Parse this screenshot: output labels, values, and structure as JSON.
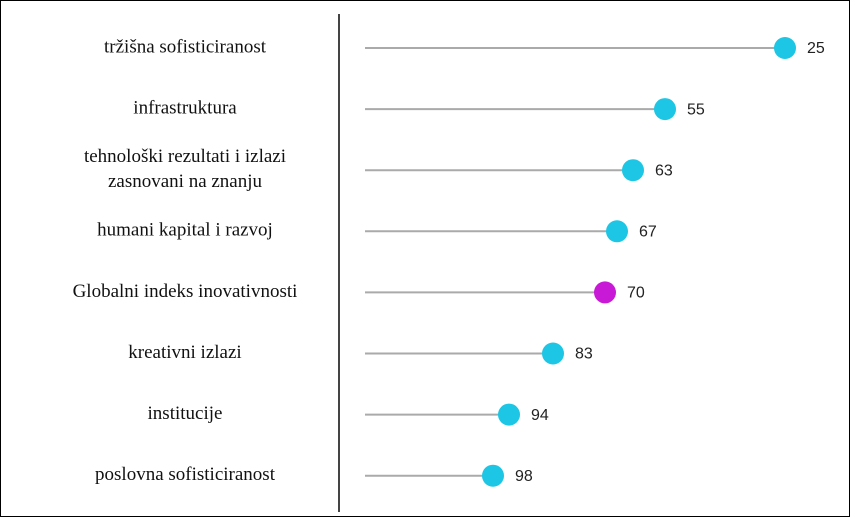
{
  "chart_data": {
    "type": "lollipop",
    "categories": [
      "tržišna sofisticiranost",
      "infrastruktura",
      [
        "tehnološki rezultati i izlazi",
        "zasnovani na znanju"
      ],
      "humani kapital i razvoj",
      "Globalni indeks inovativnosti",
      "kreativni izlazi",
      "institucije",
      "poslovna sofisticiranost"
    ],
    "values": [
      25,
      55,
      63,
      67,
      70,
      83,
      94,
      98
    ],
    "colors": [
      "#1cc6e4",
      "#1cc6e4",
      "#1cc6e4",
      "#1cc6e4",
      "#c81ad6",
      "#1cc6e4",
      "#1cc6e4",
      "#1cc6e4"
    ],
    "xlim": [
      130,
      0
    ]
  }
}
